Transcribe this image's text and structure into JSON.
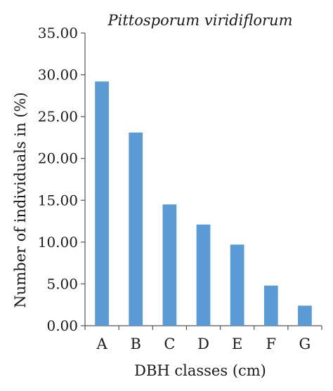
{
  "chart_data": {
    "type": "bar",
    "title": "Pittosporum viridiflorum",
    "xlabel": "DBH classes (cm)",
    "ylabel": "Number of individuals in (%)",
    "categories": [
      "A",
      "B",
      "C",
      "D",
      "E",
      "F",
      "G"
    ],
    "values": [
      29.2,
      23.1,
      14.5,
      12.1,
      9.7,
      4.8,
      2.4
    ],
    "ylim": [
      0,
      35
    ],
    "yticks": [
      "0.00",
      "5.00",
      "10.00",
      "15.00",
      "20.00",
      "25.00",
      "30.00",
      "35.00"
    ],
    "grid": false,
    "legend": "none",
    "bar_color": "#5b9bd5",
    "axis_color": "#555555"
  }
}
